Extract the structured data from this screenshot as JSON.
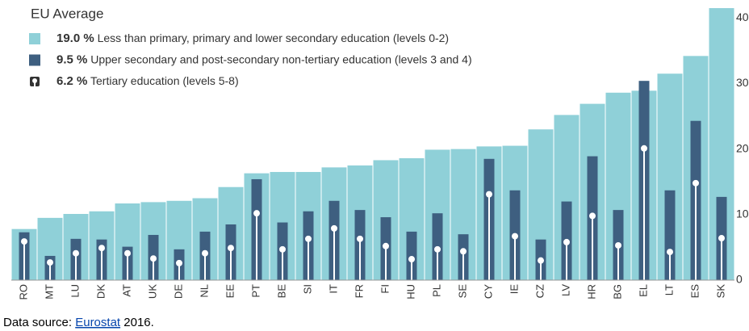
{
  "chart_data": {
    "type": "bar",
    "legend_title": "EU Average",
    "categories": [
      "RO",
      "MT",
      "LU",
      "DK",
      "AT",
      "UK",
      "DE",
      "NL",
      "EE",
      "PT",
      "BE",
      "SI",
      "IT",
      "FR",
      "FI",
      "HU",
      "PL",
      "SE",
      "CY",
      "IE",
      "CZ",
      "LV",
      "HR",
      "BG",
      "EL",
      "LT",
      "ES",
      "SK"
    ],
    "series": [
      {
        "name": "Less than primary, primary and lower secondary education (levels 0-2)",
        "color": "#8fd0d8",
        "eu_average": {
          "value": 19.0,
          "label": "19.0 %"
        },
        "values": [
          7.8,
          9.5,
          10.1,
          10.5,
          11.7,
          11.9,
          12.1,
          12.5,
          14.2,
          16.3,
          16.5,
          16.5,
          17.2,
          17.5,
          18.3,
          18.6,
          19.9,
          20.0,
          20.4,
          20.5,
          23.0,
          25.2,
          26.9,
          28.6,
          28.9,
          31.5,
          34.2,
          41.5
        ]
      },
      {
        "name": "Upper secondary and post-secondary non-tertiary education (levels 3 and 4)",
        "color": "#3e5f80",
        "eu_average": {
          "value": 9.5,
          "label": "9.5 %"
        },
        "values": [
          7.3,
          3.7,
          6.3,
          6.2,
          5.1,
          6.9,
          4.7,
          7.4,
          8.5,
          15.4,
          8.8,
          10.5,
          12.1,
          10.7,
          9.6,
          7.4,
          10.2,
          7.0,
          18.5,
          13.7,
          6.2,
          12.0,
          18.9,
          10.7,
          30.4,
          13.7,
          24.3,
          12.7
        ]
      },
      {
        "name": "Tertiary education (levels 5-8)",
        "color": "#ffffff",
        "eu_average": {
          "value": 6.2,
          "label": "6.2 %"
        },
        "values": [
          5.9,
          2.7,
          4.1,
          4.9,
          4.1,
          3.3,
          2.6,
          4.1,
          4.9,
          10.2,
          4.7,
          6.3,
          7.9,
          6.3,
          5.2,
          3.2,
          4.7,
          4.4,
          13.1,
          6.7,
          3.0,
          5.8,
          9.8,
          5.3,
          20.1,
          4.3,
          14.8,
          6.4
        ]
      }
    ],
    "ylim": [
      0,
      42
    ],
    "yticks": [
      0,
      10,
      20,
      30,
      40
    ],
    "grid": false
  },
  "source": {
    "prefix": "Data source:",
    "link": "Eurostat",
    "suffix": "2016."
  }
}
